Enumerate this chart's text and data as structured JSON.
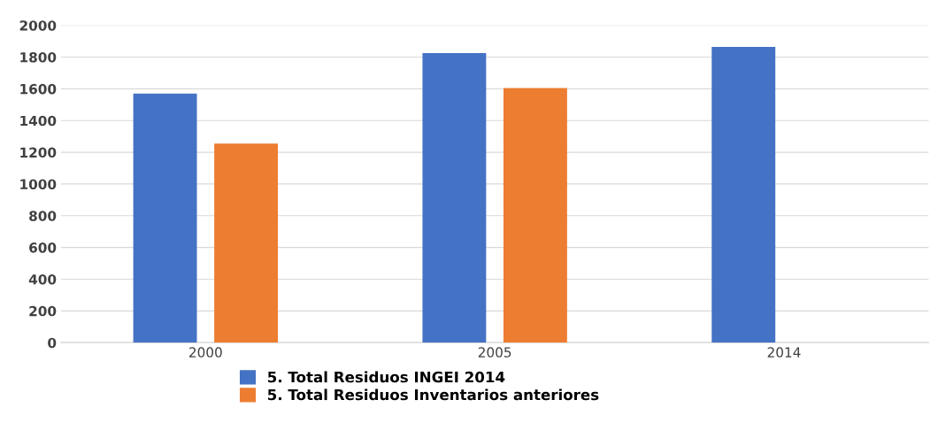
{
  "chart_data": {
    "type": "bar",
    "categories": [
      "2000",
      "2005",
      "2014"
    ],
    "series": [
      {
        "name": "5. Total Residuos INGEI 2014",
        "color": "#4472c4",
        "values": [
          1570,
          1825,
          1865
        ]
      },
      {
        "name": "5. Total Residuos Inventarios anteriores",
        "color": "#ed7d31",
        "values": [
          1255,
          1605,
          null
        ]
      }
    ],
    "ylim": [
      0,
      2000
    ],
    "yticks": [
      0,
      200,
      400,
      600,
      800,
      1000,
      1200,
      1400,
      1600,
      1800,
      2000
    ],
    "grid": "y",
    "legend": "bottom"
  }
}
